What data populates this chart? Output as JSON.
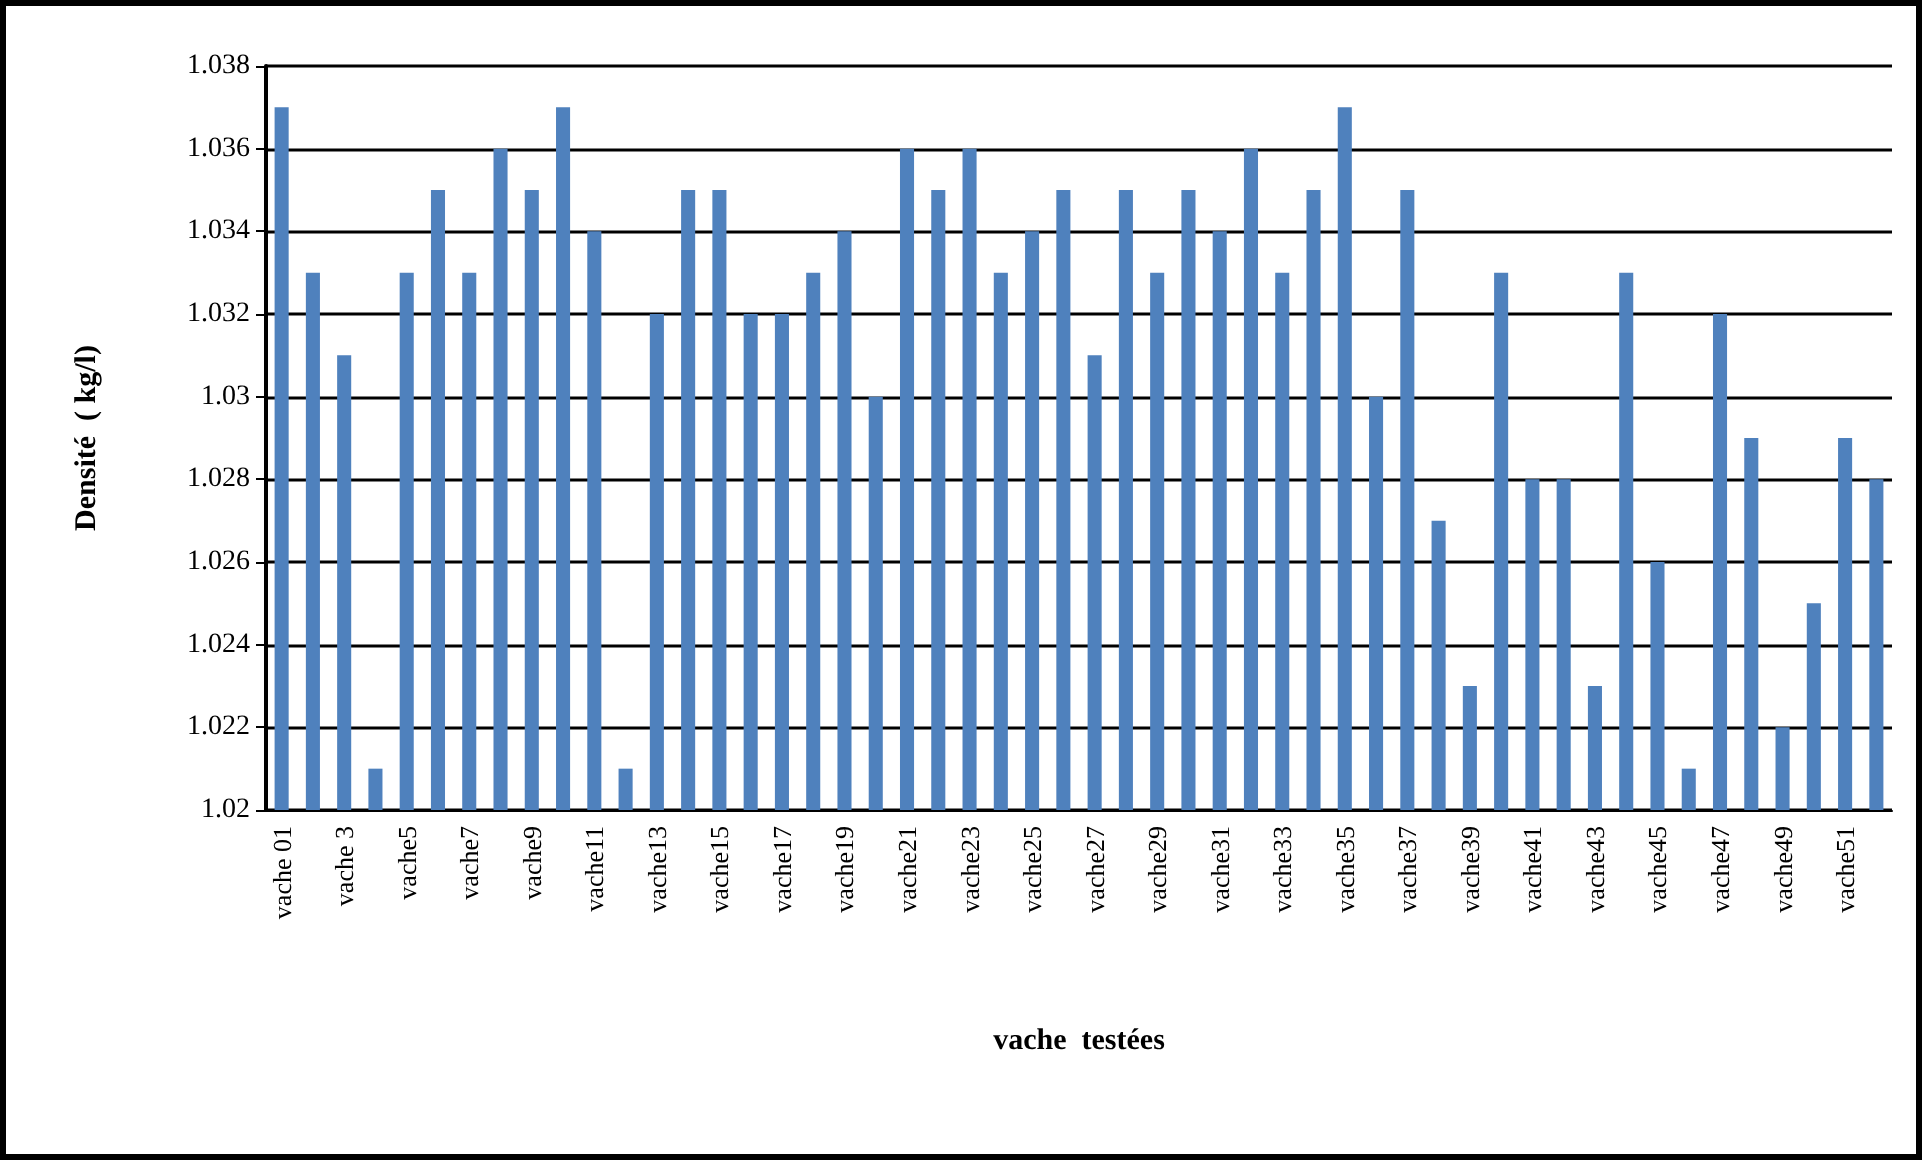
{
  "chart_data": {
    "type": "bar",
    "xlabel": "vache  testées",
    "ylabel": "Densité  ( kg/l)",
    "categories": [
      "vache 01",
      null,
      "vache 3",
      null,
      "vache5",
      null,
      "vache7",
      null,
      "vache9",
      null,
      "vache11",
      null,
      "vache13",
      null,
      "vache15",
      null,
      "vache17",
      null,
      "vache19",
      null,
      "vache21",
      null,
      "vache23",
      null,
      "vache25",
      null,
      "vache27",
      null,
      "vache29",
      null,
      "vache31",
      null,
      "vache33",
      null,
      "vache35",
      null,
      "vache37",
      null,
      "vache39",
      null,
      "vache41",
      null,
      "vache43",
      null,
      "vache45",
      null,
      "vache47",
      null,
      "vache49",
      null,
      "vache51",
      null
    ],
    "values": [
      1.037,
      1.033,
      1.031,
      1.021,
      1.033,
      1.035,
      1.033,
      1.036,
      1.035,
      1.037,
      1.034,
      1.021,
      1.032,
      1.035,
      1.035,
      1.032,
      1.032,
      1.033,
      1.034,
      1.03,
      1.036,
      1.035,
      1.036,
      1.033,
      1.034,
      1.035,
      1.031,
      1.035,
      1.033,
      1.035,
      1.034,
      1.036,
      1.033,
      1.035,
      1.037,
      1.03,
      1.035,
      1.027,
      1.023,
      1.033,
      1.028,
      1.028,
      1.023,
      1.033,
      1.026,
      1.021,
      1.032,
      1.029,
      1.022,
      1.025,
      1.029,
      1.028
    ],
    "color": "#4f81bd",
    "ylim": [
      1.02,
      1.038
    ],
    "yticks": [
      1.02,
      1.022,
      1.024,
      1.026,
      1.028,
      1.03,
      1.032,
      1.034,
      1.036,
      1.038
    ],
    "grid": "y"
  }
}
